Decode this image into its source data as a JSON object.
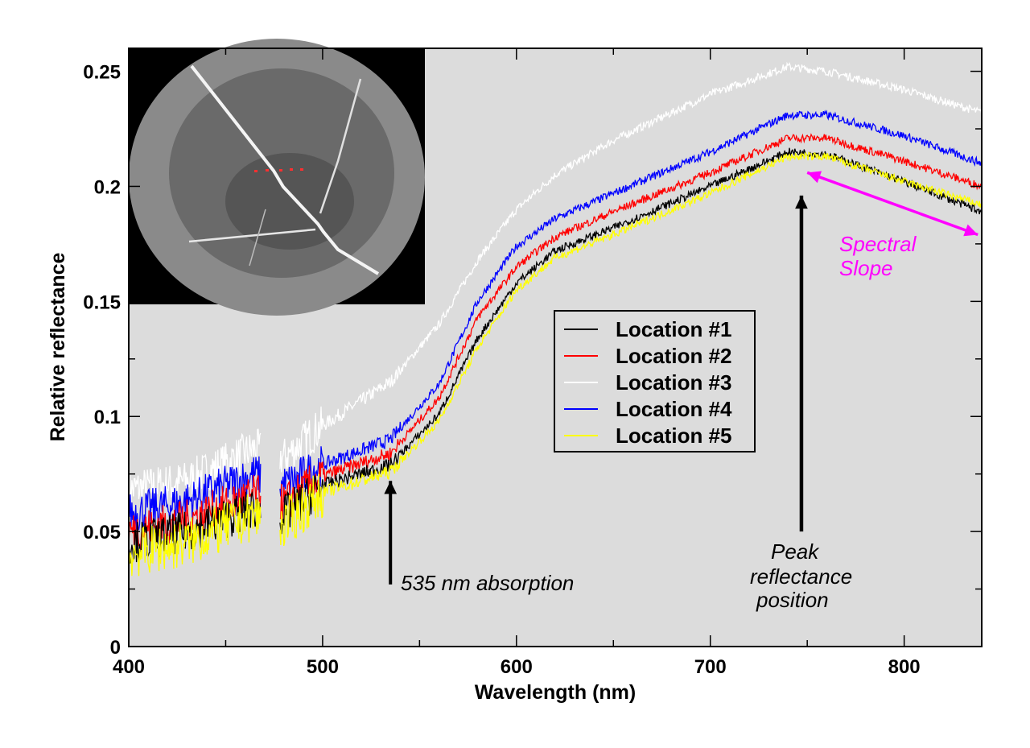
{
  "chart_data": {
    "type": "line",
    "title": "",
    "xlabel": "Wavelength (nm)",
    "ylabel": "Relative reflectance",
    "xlim": [
      400,
      840
    ],
    "ylim": [
      0,
      0.26
    ],
    "xticks": [
      400,
      500,
      600,
      700,
      800
    ],
    "yticks": [
      0,
      0.05,
      0.1,
      0.15,
      0.2,
      0.25
    ],
    "xtick_labels": [
      "400",
      "500",
      "600",
      "700",
      "800"
    ],
    "ytick_labels": [
      "0",
      "0.05",
      "0.1",
      "0.15",
      "0.2",
      "0.25"
    ],
    "grid": false,
    "background": "#dcdcdc",
    "data_gap_nm": [
      468,
      478
    ],
    "x": [
      400,
      430,
      465,
      480,
      500,
      535,
      560,
      580,
      600,
      620,
      650,
      700,
      740,
      760,
      800,
      840
    ],
    "series": [
      {
        "name": "Location #1",
        "color": "#000000",
        "values": [
          0.045,
          0.05,
          0.06,
          0.057,
          0.07,
          0.079,
          0.101,
          0.134,
          0.158,
          0.172,
          0.182,
          0.2,
          0.215,
          0.214,
          0.202,
          0.189
        ]
      },
      {
        "name": "Location #2",
        "color": "#ff0000",
        "values": [
          0.05,
          0.055,
          0.066,
          0.062,
          0.074,
          0.084,
          0.108,
          0.143,
          0.165,
          0.178,
          0.189,
          0.206,
          0.221,
          0.221,
          0.211,
          0.2
        ]
      },
      {
        "name": "Location #3",
        "color": "#ffffff",
        "values": [
          0.068,
          0.072,
          0.086,
          0.082,
          0.096,
          0.115,
          0.14,
          0.168,
          0.19,
          0.205,
          0.22,
          0.24,
          0.252,
          0.25,
          0.242,
          0.232
        ]
      },
      {
        "name": "Location #4",
        "color": "#0000ff",
        "values": [
          0.058,
          0.063,
          0.075,
          0.07,
          0.079,
          0.09,
          0.114,
          0.15,
          0.174,
          0.186,
          0.197,
          0.215,
          0.231,
          0.231,
          0.222,
          0.21
        ]
      },
      {
        "name": "Location #5",
        "color": "#ffff00",
        "values": [
          0.04,
          0.045,
          0.057,
          0.053,
          0.067,
          0.076,
          0.098,
          0.13,
          0.155,
          0.169,
          0.179,
          0.197,
          0.213,
          0.213,
          0.202,
          0.192
        ]
      }
    ],
    "legend_position": "center-right",
    "annotations": [
      {
        "text": "535 nm absorption",
        "color": "#000000",
        "arrow_x": 535,
        "arrow_y_from": 0.027,
        "arrow_y_to": 0.072
      },
      {
        "text_lines": [
          "Peak",
          "reflectance",
          "position"
        ],
        "color": "#000000",
        "arrow_x": 747,
        "arrow_y_from": 0.05,
        "arrow_y_to": 0.196
      },
      {
        "text_lines": [
          "Spectral",
          "Slope"
        ],
        "color": "#ff00ff",
        "arrow_from": [
          750,
          0.206
        ],
        "arrow_to": [
          838,
          0.179
        ]
      }
    ],
    "inset": "grayscale circular fundus image with red location markers"
  }
}
